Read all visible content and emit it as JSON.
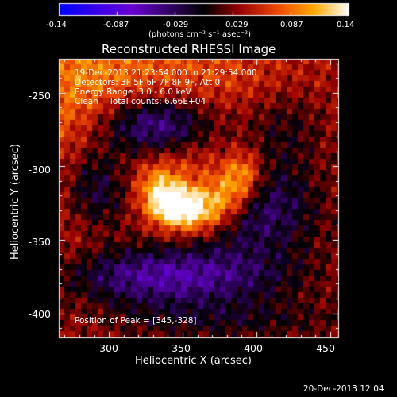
{
  "colorbar": {
    "ticks": [
      "-0.14",
      "-0.087",
      "-0.029",
      "0.029",
      "0.087",
      "0.14"
    ],
    "units": "(photons cm⁻² s⁻¹ asec⁻²)"
  },
  "title": "Reconstructed RHESSI Image",
  "info": {
    "line1": "19-Dec-2013 21:23:54.000 to 21:29:54.000",
    "line2": "Detectors: 3F 5F 6F 7F 8F 9F, Att 0",
    "line3": "Energy Range: 3.0 - 6.0 keV",
    "line4": "Clean    Total counts: 6.66E+04"
  },
  "peak_label": "Position of Peak = [345,-328]",
  "axes": {
    "xlabel": "Heliocentric X (arcsec)",
    "ylabel": "Heliocentric Y (arcsec)",
    "xticks": [
      "300",
      "350",
      "400",
      "450"
    ],
    "yticks": [
      "-250",
      "-300",
      "-350",
      "-400"
    ]
  },
  "timestamp": "20-Dec-2013 12:04",
  "chart_data": {
    "type": "heatmap",
    "title": "Reconstructed RHESSI Image",
    "xlabel": "Heliocentric X (arcsec)",
    "ylabel": "Heliocentric Y (arcsec)",
    "xlim": [
      266,
      456
    ],
    "ylim": [
      -417,
      -227
    ],
    "zlim": [
      -0.14,
      0.14
    ],
    "peak": [
      345,
      -328
    ],
    "colorbar_ticks": [
      -0.14,
      -0.087,
      -0.029,
      0.029,
      0.087,
      0.14
    ]
  }
}
